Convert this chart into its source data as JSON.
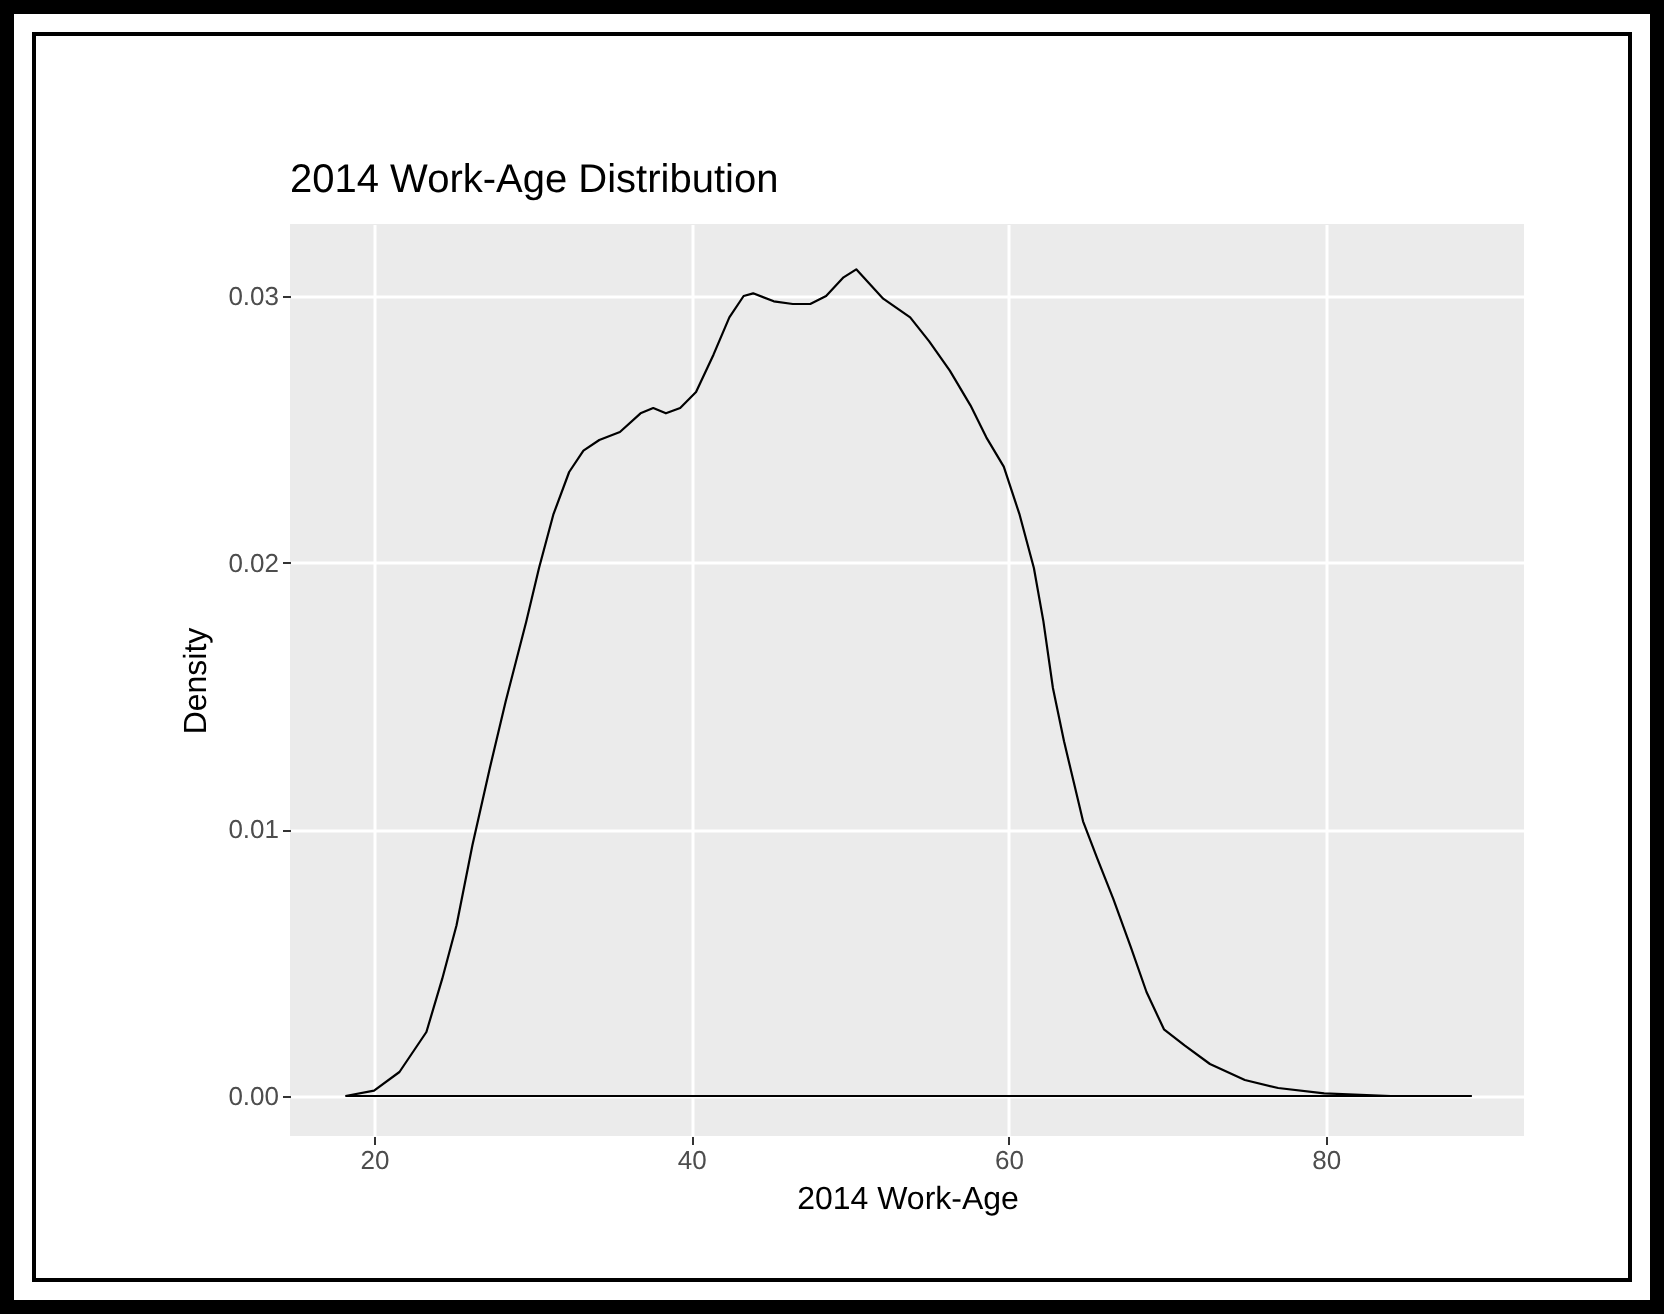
{
  "chart_data": {
    "type": "line",
    "title": "2014 Work-Age Distribution",
    "xlabel": "2014 Work-Age",
    "ylabel": "Density",
    "x": [
      18.2,
      20,
      21.6,
      23.3,
      24.3,
      25.2,
      26.2,
      27.3,
      28.3,
      29.6,
      30.4,
      31.3,
      32.3,
      33.2,
      34.2,
      35.5,
      36.8,
      37.6,
      38.4,
      39.3,
      40.3,
      41.4,
      42.4,
      43.3,
      43.9,
      45.2,
      46.4,
      47.5,
      48.5,
      49.6,
      50.4,
      52.1,
      53.8,
      55.0,
      56.3,
      57.6,
      58.6,
      59.7,
      60.7,
      61.6,
      62.2,
      62.8,
      63.5,
      64.1,
      64.7,
      65.6,
      66.6,
      67.7,
      68.7,
      69.8,
      71.1,
      72.7,
      74.9,
      77.0,
      79.9,
      84.1,
      89.2
    ],
    "series": [
      {
        "color": "#000000",
        "values": [
          0,
          0.0002,
          0.0009,
          0.0024,
          0.0044,
          0.0064,
          0.0094,
          0.0123,
          0.0148,
          0.0178,
          0.0198,
          0.0218,
          0.0234,
          0.0242,
          0.0246,
          0.0249,
          0.0256,
          0.0258,
          0.0256,
          0.0258,
          0.0264,
          0.0278,
          0.0292,
          0.03,
          0.0301,
          0.0298,
          0.0297,
          0.0297,
          0.03,
          0.0307,
          0.031,
          0.0299,
          0.0292,
          0.0283,
          0.0272,
          0.0259,
          0.0247,
          0.0236,
          0.0218,
          0.0198,
          0.0178,
          0.0153,
          0.0133,
          0.0118,
          0.0103,
          0.0089,
          0.0074,
          0.0056,
          0.0039,
          0.0025,
          0.0019,
          0.0012,
          0.0006,
          0.0003,
          0.0001,
          0,
          0
        ]
      }
    ],
    "xlim": [
      14.7,
      92.5
    ],
    "ylim": [
      -0.0015,
      0.0327
    ],
    "xticks": [
      20,
      40,
      60,
      80
    ],
    "yticks": [
      {
        "value": 0,
        "label": "0.00"
      },
      {
        "value": 0.01,
        "label": "0.01"
      },
      {
        "value": 0.02,
        "label": "0.02"
      },
      {
        "value": 0.03,
        "label": "0.03"
      }
    ],
    "ref_lines": [
      {
        "axis": "y",
        "value": 0,
        "color": "#000000"
      }
    ],
    "grid": true,
    "marker": "none",
    "line_style": "solid"
  }
}
